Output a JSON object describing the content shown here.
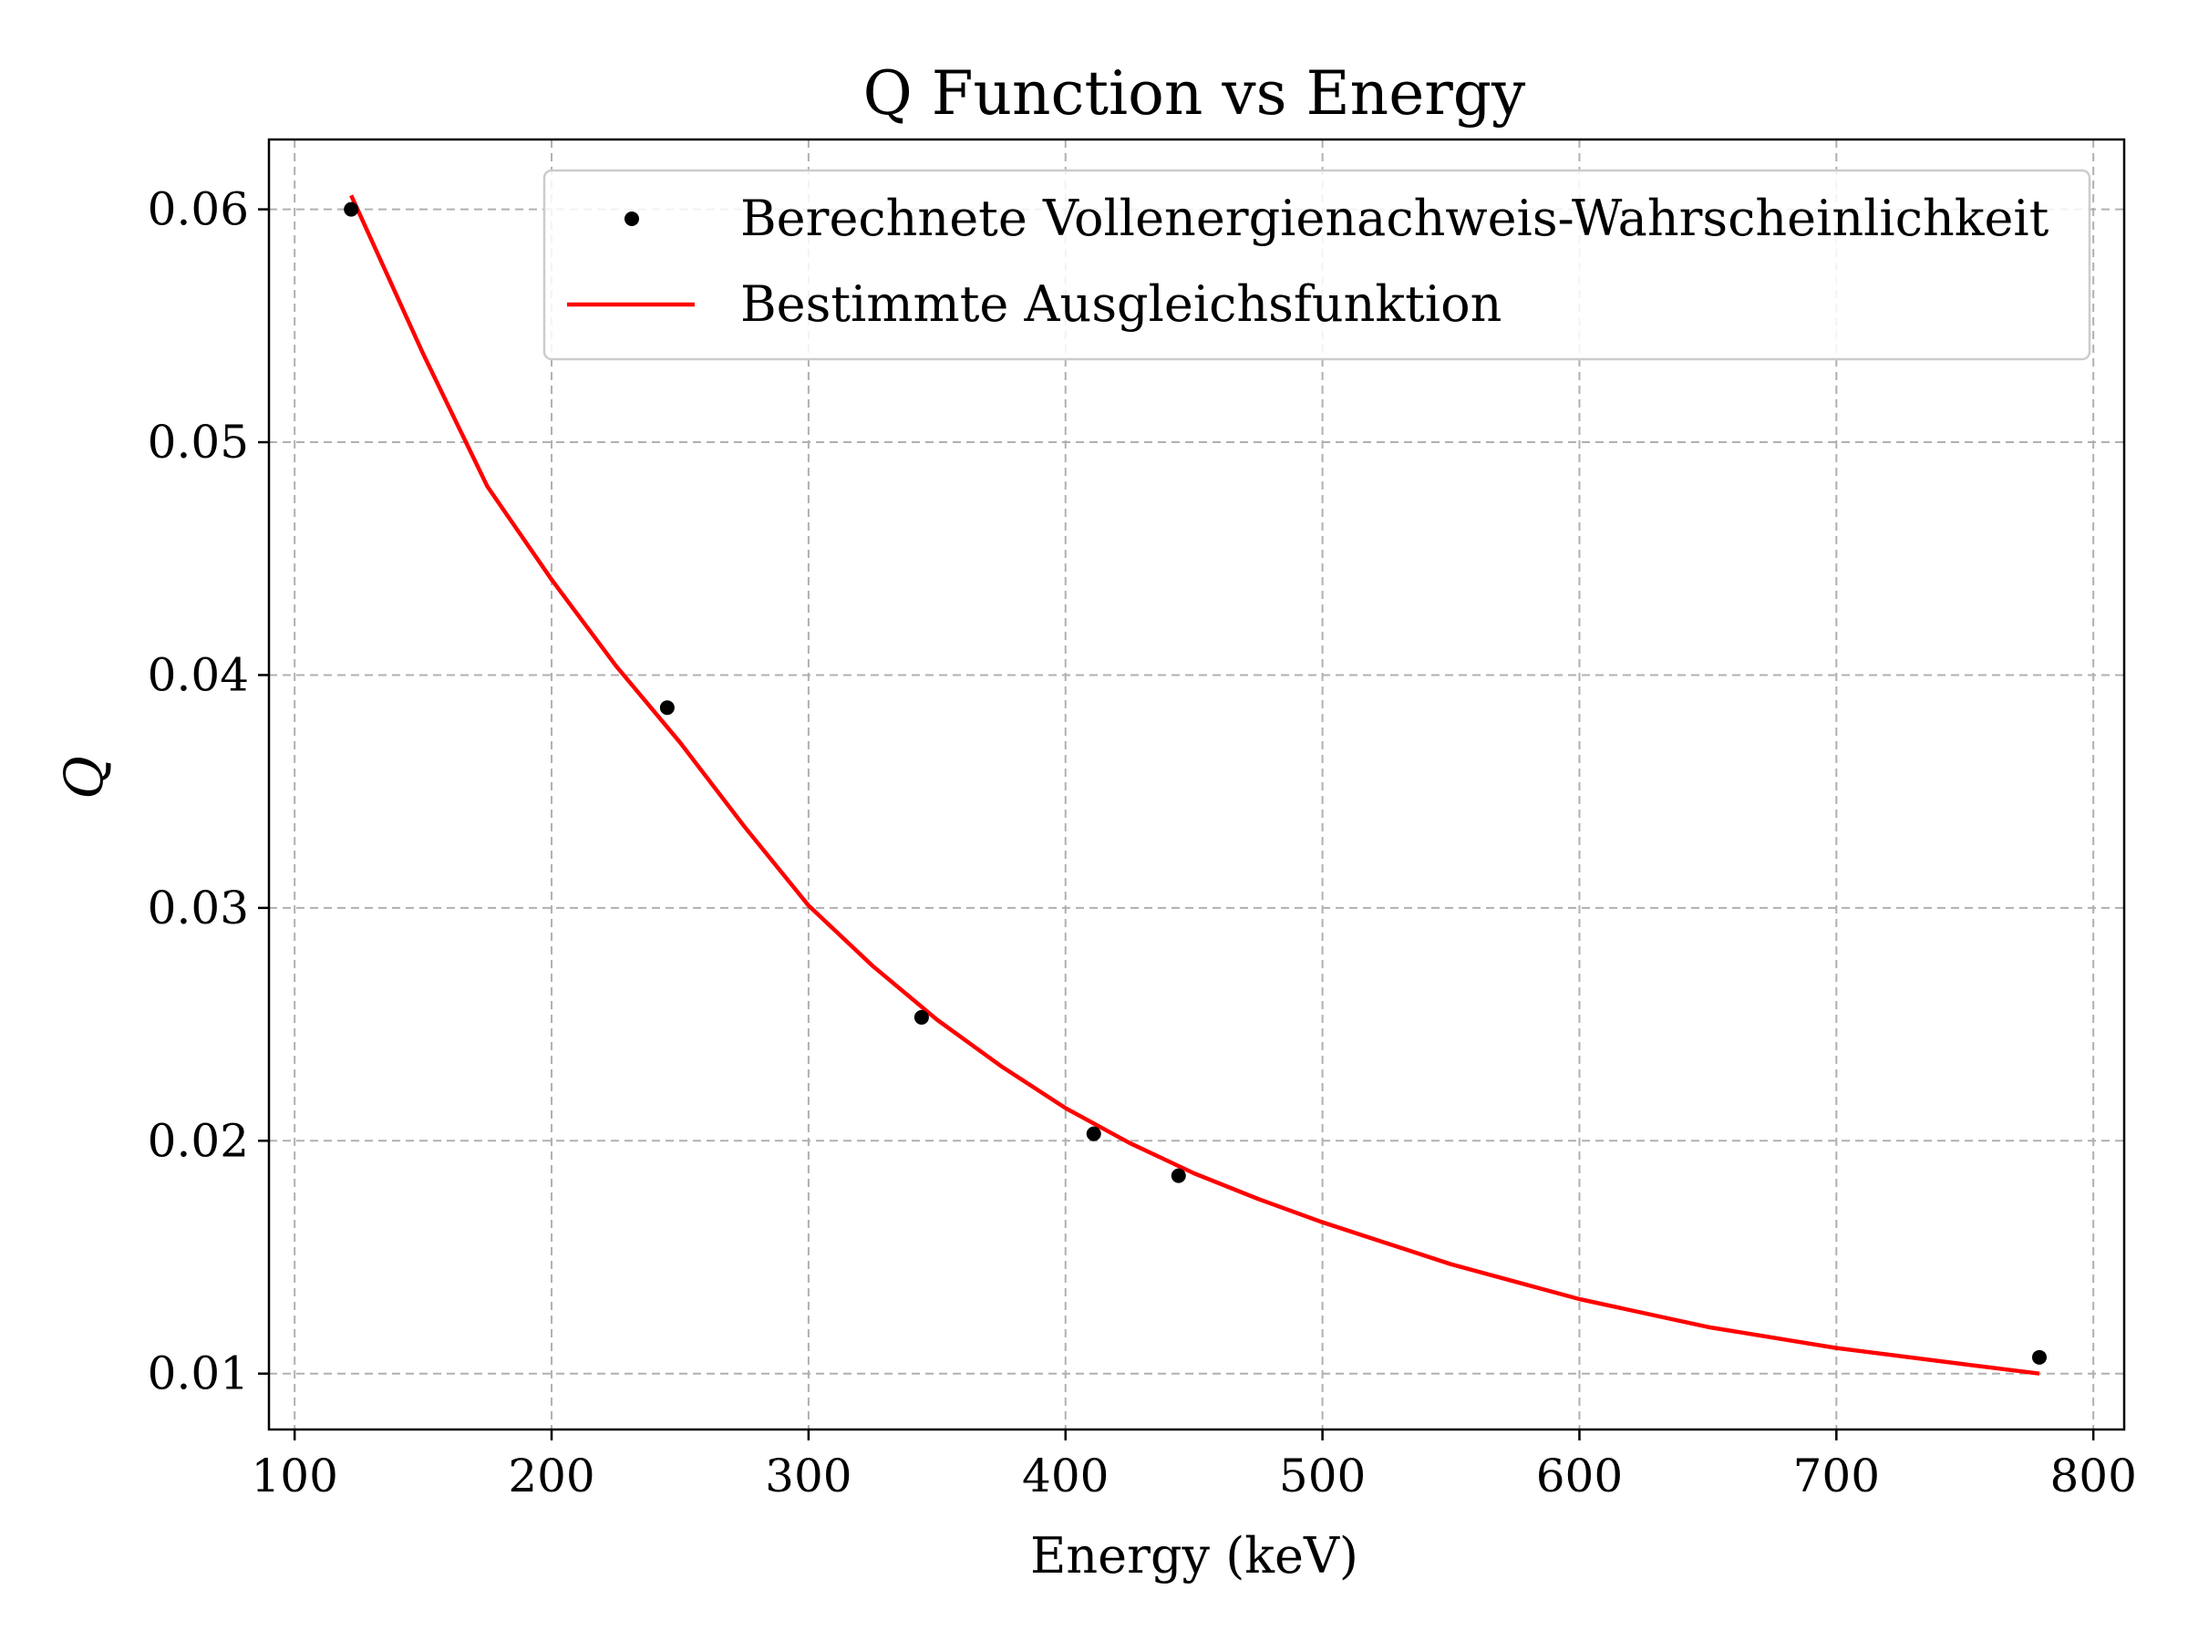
{
  "chart_data": {
    "type": "scatter",
    "title": "Q Function vs Energy",
    "xlabel": "Energy (keV)",
    "ylabel": "Q",
    "xlim": [
      90,
      812
    ],
    "ylim": [
      0.0076,
      0.063
    ],
    "xticks": [
      100,
      200,
      300,
      400,
      500,
      600,
      700,
      800
    ],
    "xtick_labels": [
      "100",
      "200",
      "300",
      "400",
      "500",
      "600",
      "700",
      "800"
    ],
    "yticks": [
      0.01,
      0.02,
      0.03,
      0.04,
      0.05,
      0.06
    ],
    "ytick_labels": [
      "0.01",
      "0.02",
      "0.03",
      "0.04",
      "0.05",
      "0.06"
    ],
    "grid": true,
    "legend_position": "top-right",
    "series": [
      {
        "name": "Berechnete Vollenergienachweis-Wahrscheinlichkeit",
        "kind": "scatter",
        "color": "#000000",
        "x": [
          122,
          245,
          344,
          411,
          444,
          779
        ],
        "y": [
          0.06,
          0.0386,
          0.0253,
          0.0203,
          0.0185,
          0.0107
        ]
      },
      {
        "name": "Bestimmte Ausgleichsfunktion",
        "kind": "line",
        "color": "#ff0000",
        "x": [
          122,
          150,
          175,
          200,
          225,
          250,
          275,
          300,
          325,
          350,
          375,
          400,
          425,
          450,
          475,
          500,
          550,
          600,
          650,
          700,
          750,
          779
        ],
        "y": [
          0.0606,
          0.0538,
          0.0481,
          0.0441,
          0.0404,
          0.0371,
          0.0335,
          0.0301,
          0.0275,
          0.0252,
          0.0232,
          0.0214,
          0.0199,
          0.0186,
          0.0175,
          0.0165,
          0.0147,
          0.0132,
          0.012,
          0.0111,
          0.0104,
          0.01
        ]
      }
    ]
  }
}
